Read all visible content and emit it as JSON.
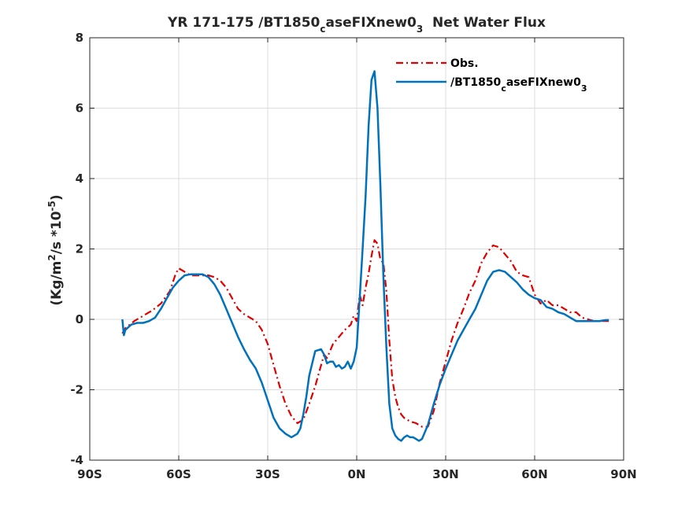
{
  "chart_data": {
    "type": "line",
    "title": {
      "prefix": "YR 171-175 /BT1850",
      "sub1": "c",
      "mid": "aseFIXnew0",
      "sub2": "3",
      "suffix": "  Net Water Flux"
    },
    "xlabel": "",
    "ylabel": {
      "prefix": "(Kg/m",
      "sup1": "2",
      "mid": "/s *10",
      "sup2": "-5",
      "suffix": ")"
    },
    "xlim": [
      -90,
      90
    ],
    "ylim": [
      -4,
      8
    ],
    "x_ticks": [
      {
        "value": -90,
        "label": "90S"
      },
      {
        "value": -60,
        "label": "60S"
      },
      {
        "value": -30,
        "label": "30S"
      },
      {
        "value": 0,
        "label": "0N"
      },
      {
        "value": 30,
        "label": "30N"
      },
      {
        "value": 60,
        "label": "60N"
      },
      {
        "value": 90,
        "label": "90N"
      }
    ],
    "y_ticks": [
      {
        "value": -4,
        "label": "-4"
      },
      {
        "value": -2,
        "label": "-2"
      },
      {
        "value": 0,
        "label": "0"
      },
      {
        "value": 2,
        "label": "2"
      },
      {
        "value": 4,
        "label": "4"
      },
      {
        "value": 6,
        "label": "6"
      },
      {
        "value": 8,
        "label": "8"
      }
    ],
    "grid": true,
    "legend_position": "top-right",
    "series": [
      {
        "name": "Obs.",
        "color": "#e00000",
        "style": "dash-dot",
        "x": [
          -79,
          -78,
          -75,
          -72,
          -69,
          -66,
          -63,
          -61,
          -60,
          -58,
          -56,
          -54,
          -52,
          -50,
          -48,
          -46,
          -44,
          -42,
          -40,
          -38,
          -36,
          -34,
          -32,
          -30,
          -28,
          -26,
          -24,
          -22,
          -20,
          -18,
          -16,
          -14,
          -12,
          -11,
          -10,
          -8,
          -6,
          -4,
          -2,
          -1,
          0,
          1,
          2,
          3,
          4,
          5,
          6,
          7,
          8,
          9,
          10,
          11,
          12,
          13,
          14,
          15,
          16,
          18,
          20,
          22,
          24,
          26,
          28,
          30,
          32,
          34,
          36,
          38,
          40,
          42,
          44,
          46,
          48,
          50,
          52,
          54,
          56,
          58,
          60,
          62,
          64,
          66,
          68,
          70,
          72,
          74,
          76,
          78,
          80,
          82,
          84,
          85
        ],
        "values": [
          -0.4,
          -0.25,
          -0.05,
          0.1,
          0.25,
          0.45,
          0.8,
          1.3,
          1.45,
          1.35,
          1.25,
          1.25,
          1.25,
          1.25,
          1.2,
          1.1,
          0.9,
          0.6,
          0.3,
          0.15,
          0.05,
          -0.05,
          -0.3,
          -0.7,
          -1.3,
          -1.9,
          -2.4,
          -2.75,
          -2.95,
          -2.85,
          -2.4,
          -1.9,
          -1.3,
          -1.0,
          -1.1,
          -0.7,
          -0.5,
          -0.3,
          -0.15,
          0.1,
          -0.05,
          0.7,
          0.4,
          0.9,
          1.3,
          1.8,
          2.25,
          2.15,
          1.7,
          1.6,
          0.8,
          -0.6,
          -1.7,
          -2.2,
          -2.5,
          -2.7,
          -2.8,
          -2.9,
          -2.95,
          -3.05,
          -3.05,
          -2.6,
          -1.8,
          -1.2,
          -0.6,
          -0.1,
          0.3,
          0.75,
          1.1,
          1.6,
          1.9,
          2.1,
          2.05,
          1.85,
          1.65,
          1.35,
          1.25,
          1.2,
          0.7,
          0.45,
          0.55,
          0.4,
          0.4,
          0.3,
          0.2,
          0.2,
          0.05,
          0.0,
          -0.05,
          -0.05,
          -0.05,
          -0.05
        ]
      },
      {
        "name": "/BT1850caseFIXnew03",
        "legend_label": {
          "prefix": "/BT1850",
          "sub1": "c",
          "mid": "aseFIXnew0",
          "sub2": "3"
        },
        "color": "#0072bd",
        "style": "solid",
        "x": [
          -79,
          -78.5,
          -78,
          -76,
          -74,
          -72,
          -70,
          -68,
          -66,
          -64,
          -62,
          -60,
          -58,
          -56,
          -54,
          -52,
          -50,
          -48,
          -46,
          -44,
          -42,
          -40,
          -38,
          -36,
          -34,
          -32,
          -30,
          -28,
          -26,
          -24,
          -22,
          -20,
          -19,
          -18,
          -17,
          -16,
          -14,
          -12,
          -11,
          -10,
          -9,
          -8,
          -7,
          -6,
          -5,
          -4,
          -3,
          -2,
          -1,
          0,
          1,
          2,
          3,
          4,
          5,
          6,
          7,
          8,
          9,
          10,
          11,
          12,
          13,
          14,
          15,
          16,
          17,
          18,
          19,
          20,
          21,
          22,
          24,
          26,
          28,
          30,
          32,
          34,
          36,
          38,
          40,
          42,
          44,
          46,
          48,
          50,
          52,
          54,
          56,
          58,
          60,
          62,
          64,
          66,
          68,
          70,
          72,
          74,
          76,
          78,
          80,
          82,
          84,
          85
        ],
        "values": [
          0.0,
          -0.45,
          -0.3,
          -0.15,
          -0.1,
          -0.1,
          -0.05,
          0.05,
          0.3,
          0.6,
          0.9,
          1.1,
          1.25,
          1.28,
          1.28,
          1.28,
          1.2,
          1.0,
          0.7,
          0.3,
          -0.1,
          -0.5,
          -0.85,
          -1.15,
          -1.4,
          -1.8,
          -2.3,
          -2.8,
          -3.1,
          -3.25,
          -3.35,
          -3.25,
          -3.1,
          -2.7,
          -2.2,
          -1.6,
          -0.9,
          -0.85,
          -1.0,
          -1.25,
          -1.2,
          -1.2,
          -1.35,
          -1.3,
          -1.4,
          -1.35,
          -1.2,
          -1.4,
          -1.2,
          -0.8,
          0.6,
          2.0,
          3.5,
          5.5,
          6.8,
          7.05,
          6.0,
          3.8,
          1.2,
          -0.8,
          -2.4,
          -3.1,
          -3.3,
          -3.4,
          -3.45,
          -3.35,
          -3.3,
          -3.35,
          -3.35,
          -3.4,
          -3.45,
          -3.4,
          -3.0,
          -2.4,
          -1.85,
          -1.4,
          -1.0,
          -0.6,
          -0.3,
          0.0,
          0.3,
          0.7,
          1.1,
          1.35,
          1.4,
          1.35,
          1.2,
          1.05,
          0.85,
          0.7,
          0.6,
          0.55,
          0.35,
          0.3,
          0.2,
          0.15,
          0.05,
          -0.05,
          -0.05,
          -0.05,
          -0.05,
          -0.05,
          -0.02,
          -0.02
        ]
      }
    ]
  }
}
